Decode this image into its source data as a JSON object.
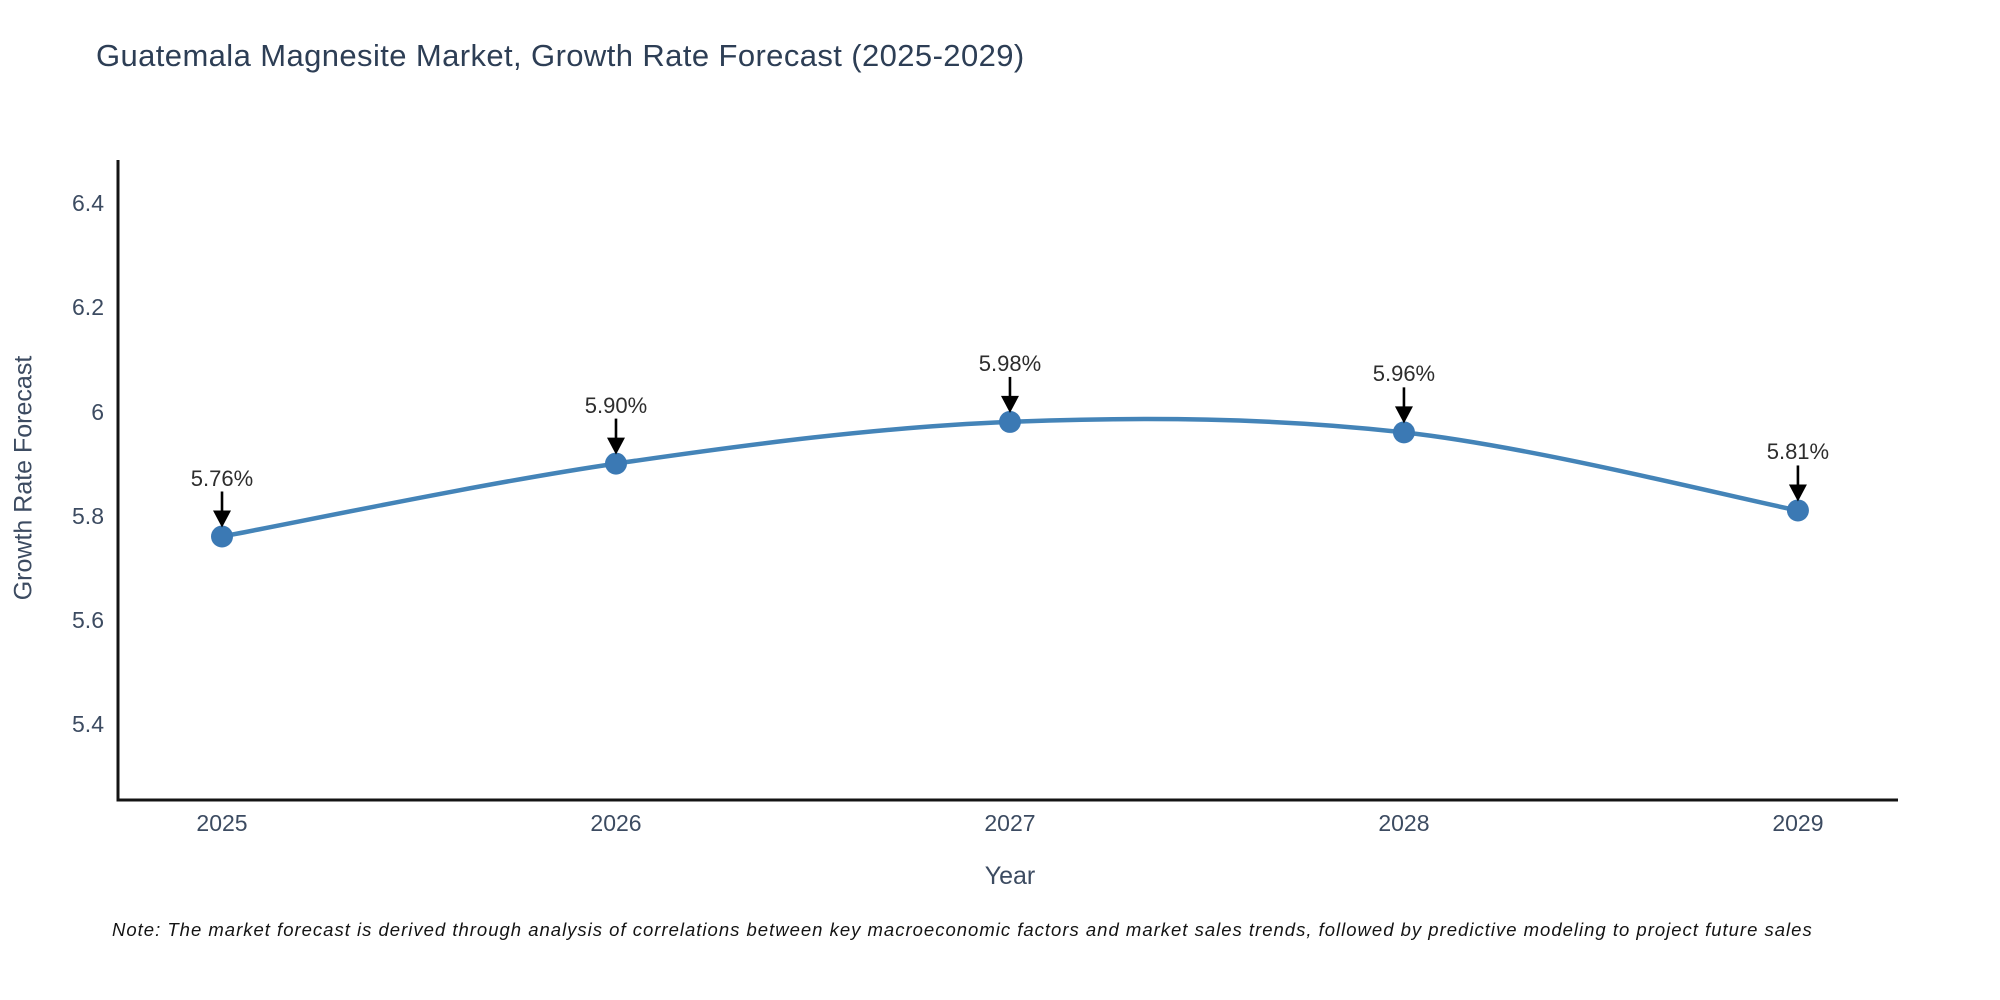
{
  "page": {
    "background": "#ffffff"
  },
  "chart_data": {
    "type": "line",
    "title": "Guatemala Magnesite Market, Growth Rate Forecast (2025-2029)",
    "xlabel": "Year",
    "ylabel": "Growth Rate Forecast",
    "x": [
      2025,
      2026,
      2027,
      2028,
      2029
    ],
    "values": [
      5.76,
      5.9,
      5.98,
      5.96,
      5.81
    ],
    "point_labels": [
      "5.76%",
      "5.90%",
      "5.98%",
      "5.96%",
      "5.81%"
    ],
    "xtick_labels": [
      "2025",
      "2026",
      "2027",
      "2028",
      "2029"
    ],
    "ytick_values": [
      5.4,
      5.6,
      5.8,
      6.0,
      6.2,
      6.4
    ],
    "ytick_labels": [
      "5.4",
      "5.6",
      "5.8",
      "6",
      "6.2",
      "6.4"
    ],
    "xlim": [
      2024.736,
      2029.254
    ],
    "ylim": [
      5.254,
      6.483
    ],
    "grid": false,
    "legend": "none",
    "smooth": true,
    "colors": {
      "line": "#4484b8",
      "marker": "#3b79b4",
      "axis": "#141414",
      "annotation_text": "#2d2d2d",
      "arrow": "#000000"
    }
  },
  "footnote": "Note: The market forecast is derived through analysis of correlations between key macroeconomic factors and market sales trends, followed by predictive modeling to project future sales"
}
